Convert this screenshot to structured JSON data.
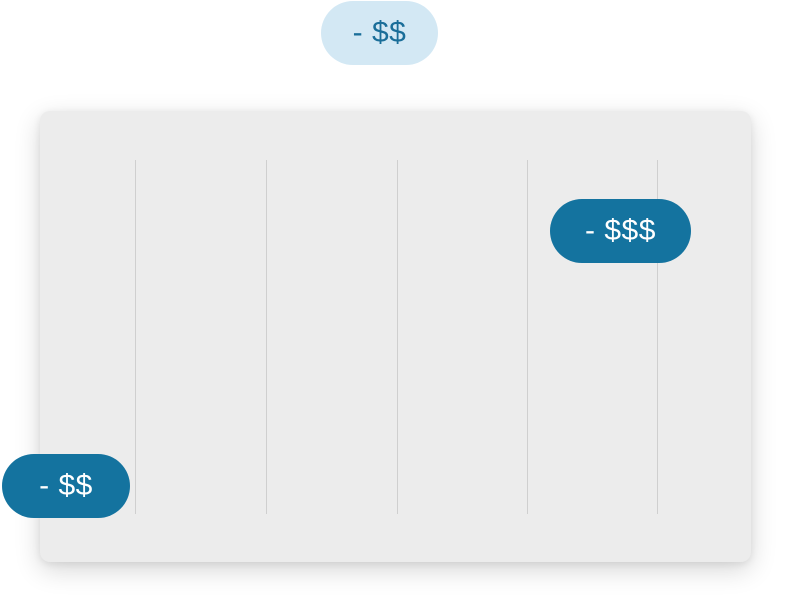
{
  "badges": {
    "top": "- $$",
    "right": "- $$$",
    "left": "- $$"
  },
  "colors": {
    "badge_light_bg": "#d3e8f4",
    "badge_light_text": "#1a6e99",
    "badge_dark_bg": "#14739f",
    "badge_dark_text": "#ffffff",
    "card_bg": "#ececec",
    "gridline": "#cfcfcf"
  }
}
